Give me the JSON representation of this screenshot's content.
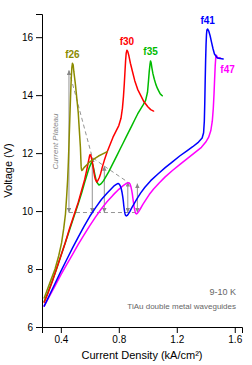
{
  "chart_data": {
    "type": "line",
    "xlabel": "Current Density (kA/cm²)",
    "ylabel": "Voltage (V)",
    "xlim": [
      0.27,
      1.65
    ],
    "ylim": [
      6.0,
      16.8
    ],
    "xticks": [
      0.4,
      0.8,
      1.2,
      1.6
    ],
    "yticks": [
      6,
      8,
      10,
      12,
      14,
      16
    ],
    "grid": false,
    "series": [
      {
        "name": "f26",
        "color": "#8B8B00",
        "x": [
          0.285,
          0.3,
          0.33,
          0.36,
          0.385,
          0.405,
          0.42,
          0.432,
          0.44,
          0.447,
          0.452,
          0.456,
          0.46,
          0.464,
          0.468,
          0.472,
          0.476,
          0.48,
          0.485,
          0.49,
          0.5,
          0.51,
          0.52,
          0.525,
          0.53,
          0.535,
          0.538,
          0.54,
          0.542,
          0.545,
          0.55,
          0.56,
          0.58,
          0.6,
          0.63,
          0.66,
          0.7,
          0.72
        ],
        "values": [
          7.0,
          7.2,
          7.6,
          8.0,
          8.45,
          8.9,
          9.4,
          9.9,
          10.5,
          11.1,
          11.7,
          12.3,
          12.9,
          13.5,
          14.1,
          14.6,
          14.95,
          15.1,
          15.05,
          14.8,
          14.4,
          13.9,
          13.4,
          13.0,
          12.6,
          12.2,
          11.8,
          11.55,
          11.45,
          11.4,
          11.42,
          11.5,
          11.6,
          11.7,
          11.8,
          11.9,
          12.0,
          12.05
        ]
      },
      {
        "name": "f30",
        "color": "#ff0000",
        "x": [
          0.285,
          0.31,
          0.34,
          0.37,
          0.4,
          0.43,
          0.46,
          0.49,
          0.52,
          0.545,
          0.565,
          0.578,
          0.588,
          0.594,
          0.598,
          0.602,
          0.608,
          0.615,
          0.622,
          0.628,
          0.633,
          0.638,
          0.643,
          0.648,
          0.655,
          0.665,
          0.675,
          0.685,
          0.7,
          0.72,
          0.74,
          0.76,
          0.78,
          0.8,
          0.815,
          0.825,
          0.832,
          0.838,
          0.843,
          0.847,
          0.851,
          0.856,
          0.862,
          0.87,
          0.88,
          0.895,
          0.91,
          0.93,
          0.95,
          0.97,
          1.0,
          1.02,
          1.04
        ],
        "values": [
          6.85,
          7.15,
          7.55,
          8.0,
          8.45,
          8.9,
          9.4,
          9.85,
          10.3,
          10.75,
          11.1,
          11.4,
          11.65,
          11.8,
          11.9,
          11.95,
          11.9,
          11.75,
          11.55,
          11.35,
          11.2,
          11.1,
          11.05,
          11.0,
          11.05,
          11.15,
          11.3,
          11.5,
          11.75,
          12.05,
          12.3,
          12.55,
          12.75,
          12.95,
          13.2,
          13.55,
          13.95,
          14.4,
          14.85,
          15.2,
          15.45,
          15.55,
          15.5,
          15.35,
          15.1,
          14.8,
          14.5,
          14.2,
          14.0,
          13.8,
          13.6,
          13.5,
          13.45
        ]
      },
      {
        "name": "f35",
        "color": "#00bb00",
        "x": [
          0.285,
          0.31,
          0.34,
          0.37,
          0.4,
          0.43,
          0.46,
          0.49,
          0.52,
          0.545,
          0.565,
          0.582,
          0.596,
          0.606,
          0.612,
          0.617,
          0.623,
          0.629,
          0.635,
          0.642,
          0.648,
          0.655,
          0.663,
          0.672,
          0.682,
          0.695,
          0.71,
          0.73,
          0.75,
          0.77,
          0.79,
          0.81,
          0.83,
          0.85,
          0.87,
          0.89,
          0.91,
          0.93,
          0.95,
          0.97,
          0.985,
          0.998,
          1.005,
          1.01,
          1.015,
          1.019,
          1.023,
          1.028,
          1.035,
          1.045,
          1.055,
          1.065,
          1.075,
          1.085,
          1.095,
          1.1
        ],
        "values": [
          6.88,
          7.18,
          7.58,
          8.0,
          8.45,
          8.9,
          9.35,
          9.8,
          10.25,
          10.65,
          11.0,
          11.28,
          11.5,
          11.62,
          11.68,
          11.65,
          11.55,
          11.4,
          11.25,
          11.1,
          11.0,
          10.95,
          10.9,
          10.92,
          10.97,
          11.05,
          11.18,
          11.35,
          11.55,
          11.75,
          11.95,
          12.15,
          12.35,
          12.55,
          12.75,
          12.95,
          13.15,
          13.35,
          13.52,
          13.68,
          13.82,
          14.1,
          14.5,
          14.82,
          15.05,
          15.18,
          15.12,
          14.95,
          14.75,
          14.55,
          14.38,
          14.25,
          14.15,
          14.05,
          14.0,
          13.98
        ]
      },
      {
        "name": "f41",
        "color": "#0000ff",
        "x": [
          0.285,
          0.32,
          0.36,
          0.4,
          0.44,
          0.48,
          0.52,
          0.56,
          0.6,
          0.64,
          0.68,
          0.72,
          0.75,
          0.77,
          0.785,
          0.795,
          0.803,
          0.81,
          0.817,
          0.822,
          0.827,
          0.831,
          0.834,
          0.837,
          0.84,
          0.843,
          0.847,
          0.852,
          0.858,
          0.866,
          0.876,
          0.888,
          0.905,
          0.925,
          0.95,
          0.98,
          1.02,
          1.07,
          1.12,
          1.17,
          1.22,
          1.27,
          1.31,
          1.35,
          1.375,
          1.385,
          1.39,
          1.393,
          1.396,
          1.399,
          1.402,
          1.405,
          1.408,
          1.413,
          1.42,
          1.43,
          1.44,
          1.45,
          1.46,
          1.48,
          1.52
        ],
        "values": [
          6.72,
          7.08,
          7.5,
          7.92,
          8.32,
          8.72,
          9.1,
          9.47,
          9.82,
          10.12,
          10.4,
          10.62,
          10.78,
          10.88,
          10.93,
          10.95,
          10.93,
          10.87,
          10.77,
          10.65,
          10.5,
          10.35,
          10.2,
          10.08,
          9.98,
          9.9,
          9.85,
          9.83,
          9.85,
          9.9,
          9.98,
          10.1,
          10.25,
          10.42,
          10.62,
          10.82,
          11.05,
          11.28,
          11.5,
          11.7,
          11.9,
          12.08,
          12.22,
          12.38,
          12.52,
          12.7,
          13.1,
          13.7,
          14.5,
          15.2,
          15.75,
          16.1,
          16.25,
          16.28,
          16.22,
          16.05,
          15.82,
          15.6,
          15.42,
          15.28,
          15.25
        ]
      },
      {
        "name": "f47",
        "color": "#ff00ff",
        "x": [
          0.285,
          0.32,
          0.36,
          0.4,
          0.44,
          0.48,
          0.52,
          0.56,
          0.6,
          0.64,
          0.68,
          0.72,
          0.76,
          0.8,
          0.83,
          0.85,
          0.865,
          0.872,
          0.878,
          0.883,
          0.888,
          0.893,
          0.897,
          0.901,
          0.905,
          0.909,
          0.913,
          0.917,
          0.922,
          0.928,
          0.937,
          0.949,
          0.965,
          0.985,
          1.01,
          1.04,
          1.08,
          1.12,
          1.17,
          1.22,
          1.27,
          1.32,
          1.37,
          1.4,
          1.42,
          1.435,
          1.445,
          1.452,
          1.457,
          1.461,
          1.465,
          1.469,
          1.473,
          1.48,
          1.5
        ],
        "values": [
          6.72,
          7.05,
          7.42,
          7.8,
          8.15,
          8.5,
          8.85,
          9.18,
          9.5,
          9.8,
          10.08,
          10.33,
          10.55,
          10.75,
          10.88,
          10.95,
          10.98,
          10.97,
          10.93,
          10.85,
          10.74,
          10.6,
          10.45,
          10.3,
          10.17,
          10.06,
          9.97,
          9.92,
          9.9,
          9.92,
          9.98,
          10.08,
          10.22,
          10.38,
          10.57,
          10.76,
          10.98,
          11.18,
          11.4,
          11.6,
          11.8,
          12.0,
          12.2,
          12.38,
          12.55,
          12.78,
          13.1,
          13.55,
          14.05,
          14.55,
          15.0,
          15.3,
          15.38,
          15.3,
          15.28
        ]
      }
    ],
    "arrows": [
      {
        "x": 0.456,
        "y_top": 14.85,
        "y_bot": 9.95
      },
      {
        "x": 0.617,
        "y_top": 11.85,
        "y_bot": 9.95
      },
      {
        "x": 0.7,
        "y_top": 11.55,
        "y_bot": 9.95
      },
      {
        "x": 0.862,
        "y_top": 11.0,
        "y_bot": 9.95
      },
      {
        "x": 0.928,
        "y_top": 10.95,
        "y_bot": 9.95
      }
    ],
    "dashed_line": {
      "x": [
        0.456,
        0.617,
        0.7,
        0.862
      ],
      "y": [
        14.85,
        11.85,
        11.55,
        11.0
      ]
    },
    "hline": {
      "y": 9.95,
      "x1": 0.456,
      "x2": 0.928
    },
    "annotations": [
      "Current Plateau",
      "9-10 K",
      "TiAu double metal waveguides"
    ]
  }
}
